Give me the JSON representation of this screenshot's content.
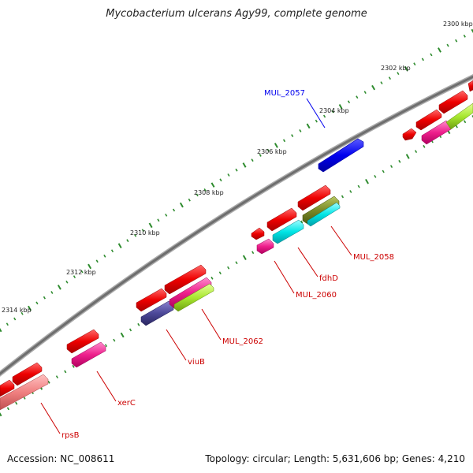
{
  "title": "Mycobacterium ulcerans Agy99, complete genome",
  "footer": {
    "accession": "Accession: NC_008611",
    "topology": "Topology: circular; Length: 5,631,606 bp; Genes: 4,210"
  },
  "ticks": [
    "2300 kbp",
    "2302 kbp",
    "2304 kbp",
    "2306 kbp",
    "2308 kbp",
    "2310 kbp",
    "2312 kbp",
    "2314 kbp"
  ],
  "gene_labels": [
    {
      "name": "MUL_2057",
      "color": "#0000ee"
    },
    {
      "name": "MUL_2058",
      "color": "#cc0000"
    },
    {
      "name": "fdhD",
      "color": "#cc0000"
    },
    {
      "name": "MUL_2060",
      "color": "#cc0000"
    },
    {
      "name": "MUL_2062",
      "color": "#cc0000"
    },
    {
      "name": "viuB",
      "color": "#cc0000"
    },
    {
      "name": "xerC",
      "color": "#cc0000"
    },
    {
      "name": "rpsB",
      "color": "#cc0000"
    }
  ],
  "colors": {
    "backbone": "#888888",
    "forward_cds": "#ee0000",
    "highlight_cds": "#0000ee",
    "tick_marks": "#2e8b2e"
  }
}
